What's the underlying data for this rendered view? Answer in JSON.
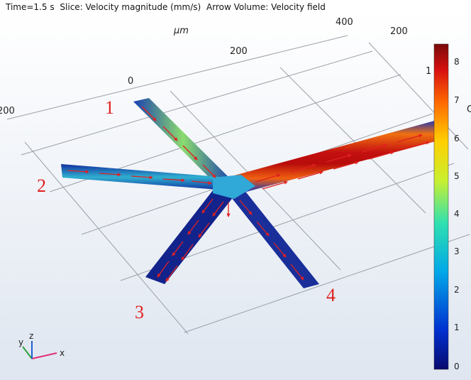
{
  "header": {
    "time": "Time=1.5 s",
    "slice": "Slice: Velocity magnitude (mm/s)",
    "arrow": "Arrow Volume: Velocity field"
  },
  "axis": {
    "unit": "μm",
    "ticks": {
      "t400": "400",
      "t200_top": "200",
      "t200_mid": "200",
      "t0": "0",
      "t200_left": "200",
      "t1": "1",
      "tc": "C"
    }
  },
  "channels": {
    "label_1": "1",
    "label_2": "2",
    "label_3": "3",
    "label_4": "4"
  },
  "colorbar": {
    "labels": [
      "8",
      "7",
      "6",
      "5",
      "4",
      "3",
      "2",
      "1",
      "0"
    ],
    "min": 0,
    "max": 8.5
  },
  "triad": {
    "x": "x",
    "y": "y",
    "z": "z"
  },
  "colors": {
    "low": "#0a1a7a",
    "high": "#c8101a",
    "arrow": "#e02020"
  }
}
